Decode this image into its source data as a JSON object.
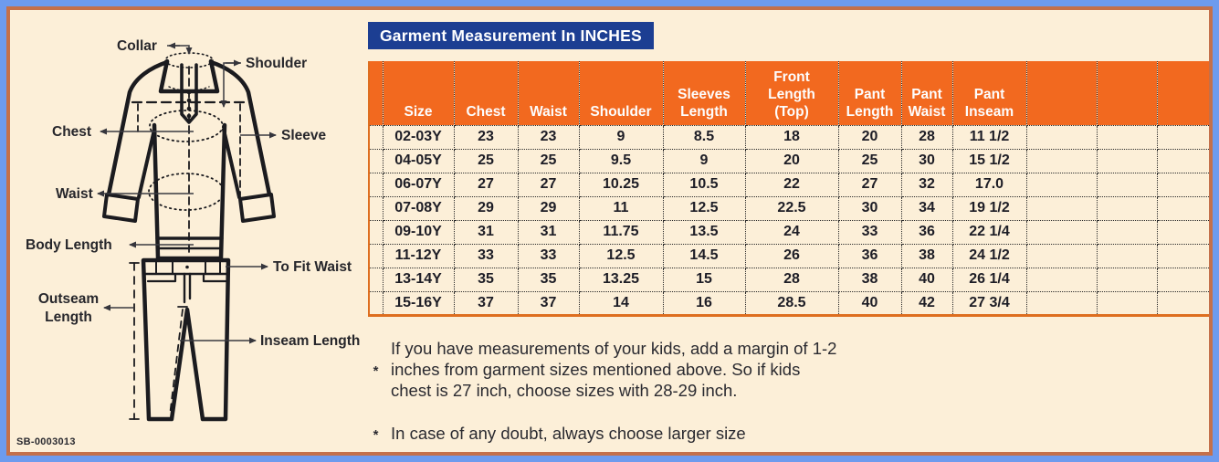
{
  "title": "Garment Measurement In INCHES",
  "colors": {
    "frame_blue": "#6d9bee",
    "inner_border": "#c4704a",
    "background": "#fcefd8",
    "header_orange": "#f2691f",
    "title_blue": "#1c3e92",
    "table_line_orange": "#de6e1f",
    "ink": "#1d1d26"
  },
  "table": {
    "columns": [
      "",
      "Size",
      "Chest",
      "Waist",
      "Shoulder",
      "Sleeves Length",
      "Front Length (Top)",
      "Pant Length",
      "Pant Waist",
      "Pant Inseam",
      "",
      "",
      ""
    ],
    "rows": [
      [
        "",
        "02-03Y",
        "23",
        "23",
        "9",
        "8.5",
        "18",
        "20",
        "28",
        "11 1/2",
        "",
        "",
        ""
      ],
      [
        "",
        "04-05Y",
        "25",
        "25",
        "9.5",
        "9",
        "20",
        "25",
        "30",
        "15 1/2",
        "",
        "",
        ""
      ],
      [
        "",
        "06-07Y",
        "27",
        "27",
        "10.25",
        "10.5",
        "22",
        "27",
        "32",
        "17.0",
        "",
        "",
        ""
      ],
      [
        "",
        "07-08Y",
        "29",
        "29",
        "11",
        "12.5",
        "22.5",
        "30",
        "34",
        "19 1/2",
        "",
        "",
        ""
      ],
      [
        "",
        "09-10Y",
        "31",
        "31",
        "11.75",
        "13.5",
        "24",
        "33",
        "36",
        "22 1/4",
        "",
        "",
        ""
      ],
      [
        "",
        "11-12Y",
        "33",
        "33",
        "12.5",
        "14.5",
        "26",
        "36",
        "38",
        "24 1/2",
        "",
        "",
        ""
      ],
      [
        "",
        "13-14Y",
        "35",
        "35",
        "13.25",
        "15",
        "28",
        "38",
        "40",
        "26 1/4",
        "",
        "",
        ""
      ],
      [
        "",
        "15-16Y",
        "37",
        "37",
        "14",
        "16",
        "28.5",
        "40",
        "42",
        "27 3/4",
        "",
        "",
        ""
      ]
    ]
  },
  "diagram": {
    "labels": {
      "collar": "Collar",
      "shoulder": "Shoulder",
      "chest": "Chest",
      "sleeve": "Sleeve",
      "waist": "Waist",
      "body_length": "Body Length",
      "to_fit_waist": "To Fit Waist",
      "outseam_length": "Outseam Length",
      "inseam_length": "Inseam Length"
    },
    "code": "SB-0003013"
  },
  "notes": [
    {
      "marker": "*",
      "lines": [
        "If you have measurements of your kids, add a margin of 1-2",
        "inches from garment sizes mentioned above. So if kids",
        "chest is 27 inch, choose sizes with 28-29 inch."
      ]
    },
    {
      "marker": "*",
      "lines": [
        "In case of any doubt, always choose larger size"
      ]
    }
  ]
}
